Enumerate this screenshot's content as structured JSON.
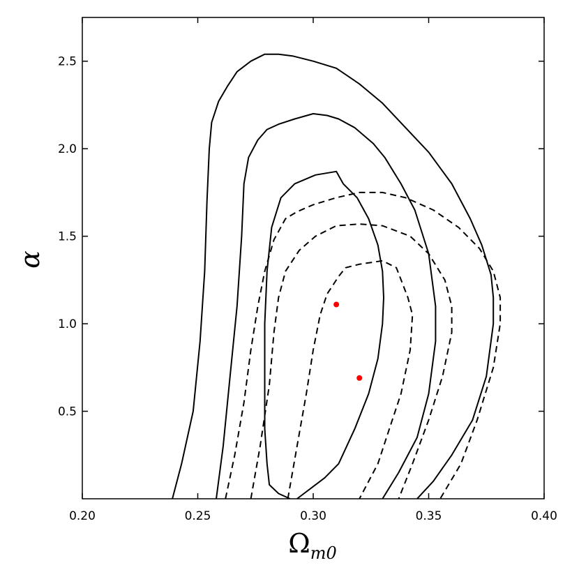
{
  "chart_data": {
    "type": "contour",
    "xlabel": "Ω_m0",
    "xlabel_main": "Ω",
    "xlabel_sub": "m0",
    "ylabel": "α",
    "xlim": [
      0.2,
      0.4
    ],
    "ylim": [
      0.0,
      2.75
    ],
    "x_ticks": [
      0.2,
      0.25,
      0.3,
      0.35,
      0.4
    ],
    "x_tick_labels": [
      "0.20",
      "0.25",
      "0.30",
      "0.35",
      "0.40"
    ],
    "y_ticks": [
      0.5,
      1.0,
      1.5,
      2.0,
      2.5
    ],
    "y_tick_labels": [
      "0.5",
      "1.0",
      "1.5",
      "2.0",
      "2.5"
    ],
    "grid": false,
    "colors": {
      "contour": "#000000",
      "best_fit": "#ff0000"
    },
    "series": [
      {
        "style": "solid",
        "contours": [
          [
            [
              0.29,
              0.0
            ],
            [
              0.285,
              0.03
            ],
            [
              0.281,
              0.08
            ],
            [
              0.28,
              0.2
            ],
            [
              0.279,
              0.4
            ],
            [
              0.279,
              0.7
            ],
            [
              0.279,
              1.0
            ],
            [
              0.28,
              1.3
            ],
            [
              0.282,
              1.55
            ],
            [
              0.286,
              1.72
            ],
            [
              0.292,
              1.8
            ],
            [
              0.301,
              1.85
            ],
            [
              0.31,
              1.87
            ],
            [
              0.313,
              1.8
            ],
            [
              0.319,
              1.72
            ],
            [
              0.324,
              1.6
            ],
            [
              0.328,
              1.45
            ],
            [
              0.33,
              1.3
            ],
            [
              0.3305,
              1.15
            ],
            [
              0.33,
              1.0
            ],
            [
              0.328,
              0.8
            ],
            [
              0.324,
              0.6
            ],
            [
              0.318,
              0.4
            ],
            [
              0.311,
              0.2
            ],
            [
              0.305,
              0.12
            ],
            [
              0.3,
              0.07
            ],
            [
              0.295,
              0.02
            ],
            [
              0.293,
              0.0
            ]
          ],
          [
            [
              0.258,
              0.0
            ],
            [
              0.261,
              0.3
            ],
            [
              0.264,
              0.7
            ],
            [
              0.267,
              1.1
            ],
            [
              0.269,
              1.5
            ],
            [
              0.27,
              1.8
            ],
            [
              0.272,
              1.95
            ],
            [
              0.276,
              2.05
            ],
            [
              0.28,
              2.11
            ],
            [
              0.285,
              2.14
            ],
            [
              0.292,
              2.17
            ],
            [
              0.3,
              2.2
            ],
            [
              0.306,
              2.19
            ],
            [
              0.311,
              2.17
            ],
            [
              0.318,
              2.12
            ],
            [
              0.326,
              2.03
            ],
            [
              0.331,
              1.95
            ],
            [
              0.338,
              1.8
            ],
            [
              0.344,
              1.65
            ],
            [
              0.35,
              1.4
            ],
            [
              0.353,
              1.1
            ],
            [
              0.353,
              0.9
            ],
            [
              0.35,
              0.6
            ],
            [
              0.345,
              0.35
            ],
            [
              0.337,
              0.15
            ],
            [
              0.33,
              0.0
            ]
          ],
          [
            [
              0.239,
              0.0
            ],
            [
              0.243,
              0.2
            ],
            [
              0.248,
              0.5
            ],
            [
              0.251,
              0.9
            ],
            [
              0.253,
              1.3
            ],
            [
              0.254,
              1.7
            ],
            [
              0.255,
              2.0
            ],
            [
              0.256,
              2.15
            ],
            [
              0.259,
              2.27
            ],
            [
              0.263,
              2.36
            ],
            [
              0.267,
              2.44
            ],
            [
              0.273,
              2.5
            ],
            [
              0.279,
              2.54
            ],
            [
              0.285,
              2.54
            ],
            [
              0.291,
              2.53
            ],
            [
              0.3,
              2.5
            ],
            [
              0.31,
              2.46
            ],
            [
              0.32,
              2.37
            ],
            [
              0.33,
              2.26
            ],
            [
              0.34,
              2.12
            ],
            [
              0.35,
              1.98
            ],
            [
              0.36,
              1.8
            ],
            [
              0.368,
              1.6
            ],
            [
              0.373,
              1.45
            ],
            [
              0.377,
              1.28
            ],
            [
              0.378,
              1.15
            ],
            [
              0.378,
              1.0
            ],
            [
              0.375,
              0.7
            ],
            [
              0.369,
              0.45
            ],
            [
              0.36,
              0.25
            ],
            [
              0.352,
              0.1
            ],
            [
              0.345,
              0.0
            ]
          ]
        ]
      },
      {
        "style": "dashed",
        "contours": [
          [
            [
              0.289,
              0.0
            ],
            [
              0.293,
              0.3
            ],
            [
              0.297,
              0.6
            ],
            [
              0.3,
              0.85
            ],
            [
              0.303,
              1.05
            ],
            [
              0.306,
              1.17
            ],
            [
              0.309,
              1.23
            ],
            [
              0.311,
              1.27
            ],
            [
              0.314,
              1.32
            ],
            [
              0.32,
              1.34
            ],
            [
              0.33,
              1.36
            ],
            [
              0.336,
              1.32
            ],
            [
              0.341,
              1.15
            ],
            [
              0.343,
              1.05
            ],
            [
              0.342,
              0.85
            ],
            [
              0.338,
              0.6
            ],
            [
              0.333,
              0.4
            ],
            [
              0.328,
              0.2
            ],
            [
              0.32,
              0.0
            ]
          ],
          [
            [
              0.273,
              0.0
            ],
            [
              0.277,
              0.3
            ],
            [
              0.281,
              0.65
            ],
            [
              0.283,
              0.95
            ],
            [
              0.285,
              1.15
            ],
            [
              0.288,
              1.3
            ],
            [
              0.294,
              1.42
            ],
            [
              0.301,
              1.5
            ],
            [
              0.31,
              1.56
            ],
            [
              0.32,
              1.57
            ],
            [
              0.33,
              1.56
            ],
            [
              0.342,
              1.5
            ],
            [
              0.35,
              1.4
            ],
            [
              0.357,
              1.25
            ],
            [
              0.36,
              1.1
            ],
            [
              0.36,
              0.95
            ],
            [
              0.356,
              0.7
            ],
            [
              0.35,
              0.45
            ],
            [
              0.343,
              0.2
            ],
            [
              0.337,
              0.0
            ]
          ],
          [
            [
              0.262,
              0.0
            ],
            [
              0.266,
              0.25
            ],
            [
              0.27,
              0.55
            ],
            [
              0.273,
              0.85
            ],
            [
              0.276,
              1.1
            ],
            [
              0.279,
              1.3
            ],
            [
              0.283,
              1.48
            ],
            [
              0.288,
              1.6
            ],
            [
              0.293,
              1.64
            ],
            [
              0.3,
              1.68
            ],
            [
              0.31,
              1.72
            ],
            [
              0.32,
              1.75
            ],
            [
              0.33,
              1.75
            ],
            [
              0.34,
              1.72
            ],
            [
              0.352,
              1.65
            ],
            [
              0.363,
              1.55
            ],
            [
              0.372,
              1.43
            ],
            [
              0.378,
              1.3
            ],
            [
              0.381,
              1.15
            ],
            [
              0.381,
              1.0
            ],
            [
              0.378,
              0.75
            ],
            [
              0.371,
              0.45
            ],
            [
              0.364,
              0.2
            ],
            [
              0.355,
              0.0
            ]
          ]
        ]
      }
    ],
    "points": [
      {
        "x": 0.31,
        "y": 1.11
      },
      {
        "x": 0.32,
        "y": 0.69
      }
    ]
  }
}
